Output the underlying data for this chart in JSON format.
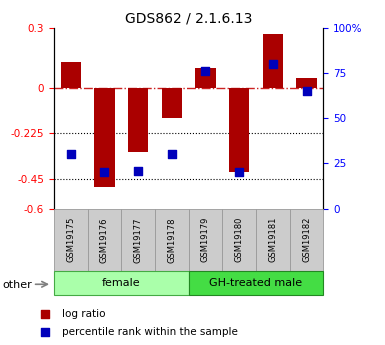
{
  "title": "GDS862 / 2.1.6.13",
  "samples": [
    "GSM19175",
    "GSM19176",
    "GSM19177",
    "GSM19178",
    "GSM19179",
    "GSM19180",
    "GSM19181",
    "GSM19182"
  ],
  "log_ratio": [
    0.13,
    -0.49,
    -0.32,
    -0.15,
    0.1,
    -0.42,
    0.27,
    0.05
  ],
  "percentile_rank": [
    30,
    20,
    21,
    30,
    76,
    20,
    80,
    65
  ],
  "groups": [
    {
      "label": "female",
      "indices": [
        0,
        3
      ],
      "color": "#aaffaa",
      "edge": "#44aa44"
    },
    {
      "label": "GH-treated male",
      "indices": [
        4,
        7
      ],
      "color": "#44dd44",
      "edge": "#228822"
    }
  ],
  "ylim_left": [
    -0.6,
    0.3
  ],
  "ylim_right": [
    0,
    100
  ],
  "yticks_left": [
    0.3,
    0,
    -0.225,
    -0.45,
    -0.6
  ],
  "yticks_right": [
    100,
    75,
    50,
    25,
    0
  ],
  "hlines": [
    -0.225,
    -0.45
  ],
  "bar_color": "#aa0000",
  "dot_color": "#0000bb",
  "zero_line_color": "#cc2222",
  "legend_items": [
    {
      "label": "log ratio",
      "color": "#aa0000"
    },
    {
      "label": "percentile rank within the sample",
      "color": "#0000bb"
    }
  ],
  "other_label": "other",
  "bar_width": 0.6,
  "dot_size": 35,
  "sample_box_color": "#cccccc",
  "sample_box_edge": "#999999"
}
